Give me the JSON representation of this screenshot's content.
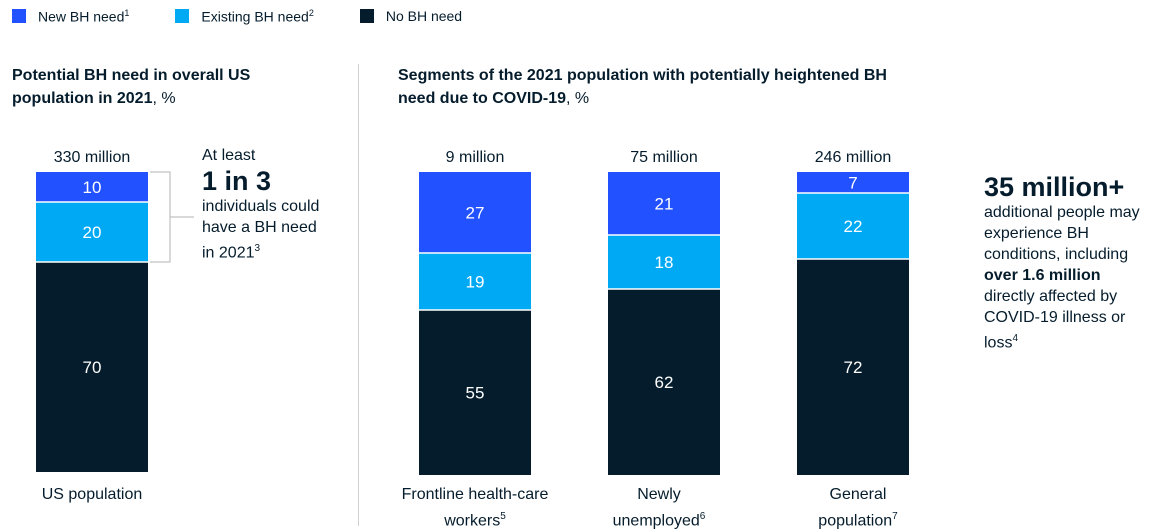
{
  "legend": [
    {
      "label": "New BH need",
      "sup": "1",
      "color": "#2251ff"
    },
    {
      "label": "Existing BH need",
      "sup": "2",
      "color": "#00a9f4"
    },
    {
      "label": "No BH need",
      "sup": "",
      "color": "#051c2c"
    }
  ],
  "panel_left": {
    "title_bold": "Potential BH need in overall US population in 2021",
    "title_rest": ", %"
  },
  "panel_right": {
    "title_bold": "Segments of the 2021 population with potentially heightened BH need due to COVID-19",
    "title_rest": ", %"
  },
  "callout_left": {
    "pre": "At least",
    "big": "1 in 3",
    "post": "individuals could have a BH need in 2021",
    "sup": "3"
  },
  "callout_right": {
    "big": "35 million+",
    "text1": "additional people may experience BH conditions, including ",
    "bold": "over 1.6 million",
    "text2": " directly affected by COVID-19 illness or loss",
    "sup": "4"
  },
  "chart_data": {
    "type": "bar",
    "stacked": true,
    "unit": "%",
    "categories": [
      {
        "label": "US population",
        "sup": "",
        "total": "330 million"
      },
      {
        "label": "Frontline health-care workers",
        "sup": "5",
        "total": "9 million"
      },
      {
        "label": "Newly unemployed",
        "sup": "6",
        "total": "75 million"
      },
      {
        "label": "General population",
        "sup": "7",
        "total": "246 million"
      }
    ],
    "series": [
      {
        "name": "New BH need",
        "color": "#2251ff",
        "values": [
          10,
          27,
          21,
          7
        ]
      },
      {
        "name": "Existing BH need",
        "color": "#00a9f4",
        "values": [
          20,
          19,
          18,
          22
        ]
      },
      {
        "name": "No BH need",
        "color": "#051c2c",
        "values": [
          70,
          55,
          62,
          72
        ]
      }
    ],
    "ylim": [
      0,
      100
    ]
  }
}
